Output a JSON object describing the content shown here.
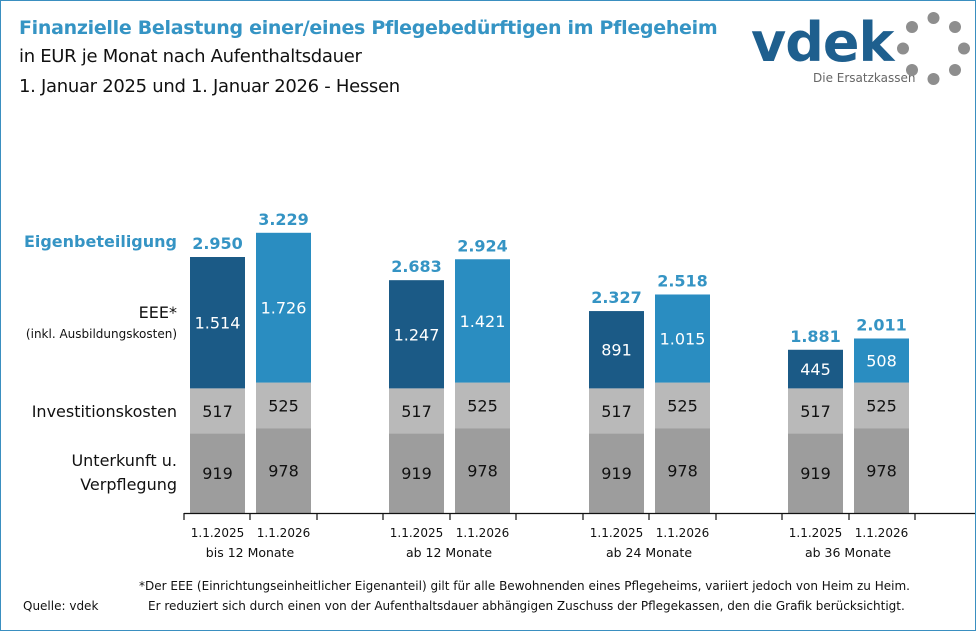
{
  "header": {
    "title": "Finanzielle Belastung einer/eines Pflegebedürftigen im Pflegeheim",
    "subtitle1": "in EUR je Monat nach Aufenthaltsdauer",
    "subtitle2": "1. Januar 2025 und 1. Januar 2026 - Hessen"
  },
  "logo": {
    "word": "vdek",
    "tagline": "Die Ersatzkassen"
  },
  "row_labels": {
    "total": "Eigenbeteiligung",
    "eee": "EEE*",
    "eee_note": "(inkl. Ausbildungskosten)",
    "invest": "Investitionskosten",
    "unterkunft1": "Unterkunft u.",
    "unterkunft2": "Verpflegung"
  },
  "colors": {
    "eee_2025": "#1b5a86",
    "eee_2026": "#2a8dc1",
    "invest": "#b9b9b9",
    "unterkunft": "#9d9d9d",
    "total_label": "#3594c4"
  },
  "chart_data": {
    "type": "stacked-bar",
    "groups": [
      "bis 12 Monate",
      "ab 12 Monate",
      "ab 24 Monate",
      "ab 36 Monate"
    ],
    "dates": [
      "1.1.2025",
      "1.1.2026"
    ],
    "stack_order": [
      "Unterkunft u. Verpflegung",
      "Investitionskosten",
      "EEE*"
    ],
    "bars": [
      {
        "group": "bis 12 Monate",
        "date": "1.1.2025",
        "unterkunft": 919,
        "invest": 517,
        "eee": "1.514",
        "eee_value": 1514,
        "total": "2.950"
      },
      {
        "group": "bis 12 Monate",
        "date": "1.1.2026",
        "unterkunft": 978,
        "invest": 525,
        "eee": "1.726",
        "eee_value": 1726,
        "total": "3.229"
      },
      {
        "group": "ab 12 Monate",
        "date": "1.1.2025",
        "unterkunft": 919,
        "invest": 517,
        "eee": "1.247",
        "eee_value": 1247,
        "total": "2.683"
      },
      {
        "group": "ab 12 Monate",
        "date": "1.1.2026",
        "unterkunft": 978,
        "invest": 525,
        "eee": "1.421",
        "eee_value": 1421,
        "total": "2.924"
      },
      {
        "group": "ab 24 Monate",
        "date": "1.1.2025",
        "unterkunft": 919,
        "invest": 517,
        "eee": "891",
        "eee_value": 891,
        "total": "2.327"
      },
      {
        "group": "ab 24 Monate",
        "date": "1.1.2026",
        "unterkunft": 978,
        "invest": 525,
        "eee": "1.015",
        "eee_value": 1015,
        "total": "2.518"
      },
      {
        "group": "ab 36 Monate",
        "date": "1.1.2025",
        "unterkunft": 919,
        "invest": 517,
        "eee": "445",
        "eee_value": 445,
        "total": "1.881"
      },
      {
        "group": "ab 36 Monate",
        "date": "1.1.2026",
        "unterkunft": 978,
        "invest": 525,
        "eee": "508",
        "eee_value": 508,
        "total": "2.011"
      }
    ]
  },
  "footer": {
    "source": "Quelle: vdek",
    "note1": "*Der EEE (Einrichtungseinheitlicher Eigenanteil) gilt für alle Bewohnenden eines Pflegeheims, variiert jedoch von Heim zu Heim.",
    "note2": "Er reduziert sich durch einen von der Aufenthaltsdauer abhängigen Zuschuss der Pflegekassen, den die Grafik berücksichtigt."
  }
}
